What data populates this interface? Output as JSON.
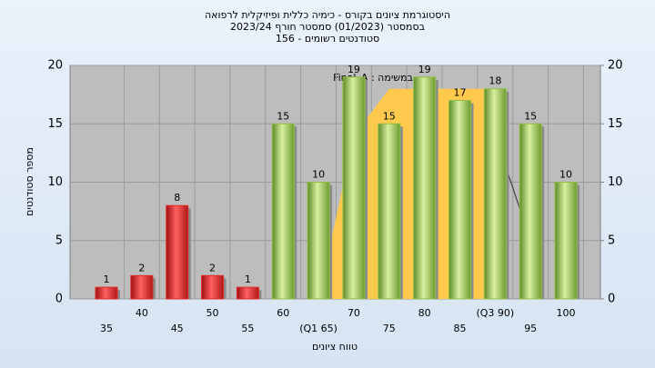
{
  "chart_data": {
    "type": "bar",
    "title": "היסטוגרמת ציונים בקורס - כימיה כללית ופיזיקלית לרפואה",
    "subtitle": "בסמסטר (01/2023) סמסטר חורף 2023/24",
    "subtitle2": "סטודנטים רשומים - 156",
    "annotation": "במשימה : Final_A",
    "y_label": "מספר סטודנטים",
    "x_label": "טווח ציונים",
    "categories": [
      "35",
      "40",
      "45",
      "50",
      "55",
      "60",
      "(Q1 65)",
      "70",
      "75",
      "80",
      "85",
      "(Q3 90)",
      "95",
      "100"
    ],
    "values": [
      1,
      2,
      8,
      2,
      1,
      15,
      10,
      19,
      15,
      19,
      17,
      18,
      15,
      10
    ],
    "colors": [
      "#e02828",
      "#e02828",
      "#e02828",
      "#e02828",
      "#e02828",
      "#8fc045",
      "#8fc045",
      "#8fc045",
      "#8fc045",
      "#8fc045",
      "#8fc045",
      "#8fc045",
      "#8fc045",
      "#8fc045"
    ],
    "area_values": [
      null,
      null,
      null,
      null,
      null,
      null,
      0,
      14,
      18,
      18,
      18,
      18,
      null,
      null
    ],
    "area_color": "#ffc94d",
    "line_values": [
      null,
      null,
      null,
      null,
      null,
      null,
      null,
      null,
      null,
      null,
      null,
      14,
      5,
      null
    ],
    "line_color": "#404040",
    "ylim": [
      0,
      20
    ],
    "yticks": [
      0,
      5,
      10,
      15,
      20
    ],
    "y2lim": [
      0,
      20
    ],
    "y2ticks": [
      0,
      5,
      10,
      15,
      20
    ],
    "grid": true
  }
}
